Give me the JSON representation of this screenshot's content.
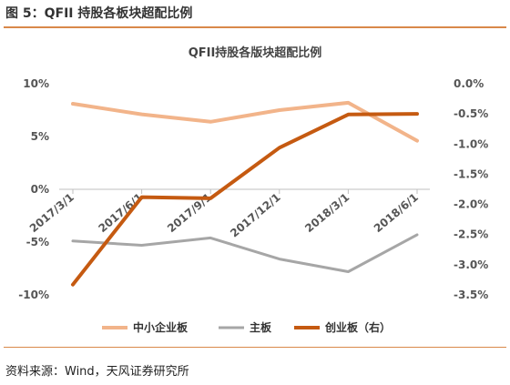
{
  "figure": {
    "caption": "图 5：QFII 持股各板块超配比例",
    "source": "资料来源：Wind，天风证券研究所"
  },
  "chart_data": {
    "type": "line",
    "title": "QFII持股各版块超配比例",
    "categories": [
      "2017/3/1",
      "2017/6/1",
      "2017/9/1",
      "2017/12/1",
      "2018/3/1",
      "2018/6/1"
    ],
    "x_tick_labels": [
      "2017/3/1",
      "2017/6/1",
      "2017/9/1",
      "2017/12/1",
      "2018/3/1",
      "2018/6/1"
    ],
    "y_left": {
      "min": -10,
      "max": 10,
      "unit": "%",
      "ticks": [
        10,
        5,
        0,
        -5,
        -10
      ],
      "tick_labels": [
        "10%",
        "5%",
        "0%",
        "-5%",
        "-10%"
      ]
    },
    "y_right": {
      "min": -3.5,
      "max": 0,
      "unit": "%",
      "ticks": [
        0,
        -0.5,
        -1.0,
        -1.5,
        -2.0,
        -2.5,
        -3.0,
        -3.5
      ],
      "tick_labels": [
        "0.0%",
        "-0.5%",
        "-1.0%",
        "-1.5%",
        "-2.0%",
        "-2.5%",
        "-3.0%",
        "-3.5%"
      ]
    },
    "grid": false,
    "legend_position": "bottom",
    "series": [
      {
        "name": "中小企业板",
        "axis": "left",
        "color": "#f2b48a",
        "values": [
          8.1,
          7.1,
          6.4,
          7.5,
          8.2,
          4.6
        ]
      },
      {
        "name": "主板",
        "axis": "left",
        "color": "#a6a6a6",
        "values": [
          -4.9,
          -5.3,
          -4.6,
          -6.6,
          -7.8,
          -4.3
        ]
      },
      {
        "name": "创业板（右）",
        "axis": "right",
        "color": "#c55a11",
        "values": [
          -3.33,
          -1.88,
          -1.9,
          -1.06,
          -0.51,
          -0.5
        ]
      }
    ]
  }
}
